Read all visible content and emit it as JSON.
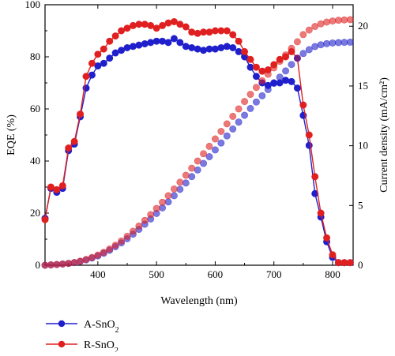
{
  "chart_data": {
    "type": "line",
    "xlabel": "Wavelength (nm)",
    "ylabel_left": "EQE (%)",
    "ylabel_right": "Current density (mA/cm²)",
    "xlim": [
      310,
      835
    ],
    "ylim_left": [
      0,
      100
    ],
    "ylim_right": [
      0,
      21.8
    ],
    "xticks": [
      400,
      500,
      600,
      700,
      800
    ],
    "yticks_left": [
      0,
      20,
      40,
      60,
      80,
      100
    ],
    "yticks_right": [
      0,
      5,
      10,
      15,
      20
    ],
    "grid": false,
    "legend_position": "bottom-left, below plot",
    "legend": [
      {
        "label": "A-SnO",
        "subscript": "2",
        "color": "#1f1fcc"
      },
      {
        "label": "R-SnO",
        "subscript": "2",
        "color": "#e02020"
      }
    ],
    "series": [
      {
        "name": "A-SnO2",
        "axis": "left",
        "color": "#1f1fcc",
        "x": [
          310,
          320,
          330,
          340,
          350,
          360,
          370,
          380,
          390,
          400,
          410,
          420,
          430,
          440,
          450,
          460,
          470,
          480,
          490,
          500,
          510,
          520,
          530,
          540,
          550,
          560,
          570,
          580,
          590,
          600,
          610,
          620,
          630,
          640,
          650,
          660,
          670,
          680,
          690,
          700,
          710,
          720,
          730,
          740,
          750,
          760,
          770,
          780,
          790,
          800,
          810,
          820,
          830
        ],
        "values": [
          18,
          29.5,
          28,
          29.5,
          44,
          46.5,
          57,
          68,
          73,
          76.5,
          77.5,
          79.5,
          81.5,
          82.5,
          83.5,
          84,
          84.5,
          85,
          85.5,
          86,
          86,
          85.5,
          87,
          85.5,
          84,
          83.5,
          83,
          82.5,
          83,
          83,
          83.5,
          84,
          83.5,
          82,
          80,
          76,
          72.5,
          70,
          69,
          70,
          70,
          71,
          70.5,
          68,
          57.5,
          46,
          27.5,
          18.5,
          9,
          3,
          1,
          1,
          1
        ]
      },
      {
        "name": "R-SnO2",
        "axis": "left",
        "color": "#e02020",
        "x": [
          310,
          320,
          330,
          340,
          350,
          360,
          370,
          380,
          390,
          400,
          410,
          420,
          430,
          440,
          450,
          460,
          470,
          480,
          490,
          500,
          510,
          520,
          530,
          540,
          550,
          560,
          570,
          580,
          590,
          600,
          610,
          620,
          630,
          640,
          650,
          660,
          670,
          680,
          690,
          700,
          710,
          720,
          730,
          740,
          750,
          760,
          770,
          780,
          790,
          800,
          810,
          820,
          830
        ],
        "values": [
          17.5,
          30,
          29,
          30.5,
          45,
          47.5,
          58,
          72.5,
          77.5,
          81,
          83,
          86,
          88,
          90,
          91,
          92,
          92.5,
          92.5,
          92,
          91,
          92,
          93,
          93.5,
          92.5,
          91.5,
          89.5,
          89,
          89.5,
          89.5,
          90,
          90,
          90,
          88.5,
          86,
          82,
          79,
          76,
          74.5,
          75,
          77,
          79,
          80,
          82,
          79.5,
          61.5,
          50,
          34,
          20,
          10.5,
          4,
          1,
          1,
          1
        ]
      },
      {
        "name": "A-SnO2 current density",
        "axis": "right",
        "color": "#1f1fcc",
        "x": [
          310,
          320,
          330,
          340,
          350,
          360,
          370,
          380,
          390,
          400,
          410,
          420,
          430,
          440,
          450,
          460,
          470,
          480,
          490,
          500,
          510,
          520,
          530,
          540,
          550,
          560,
          570,
          580,
          590,
          600,
          610,
          620,
          630,
          640,
          650,
          660,
          670,
          680,
          690,
          700,
          710,
          720,
          730,
          740,
          750,
          760,
          770,
          780,
          790,
          800,
          810,
          820,
          830
        ],
        "values": [
          0,
          0.03,
          0.06,
          0.1,
          0.15,
          0.22,
          0.32,
          0.45,
          0.6,
          0.78,
          1.0,
          1.25,
          1.55,
          1.87,
          2.22,
          2.6,
          3.0,
          3.43,
          3.87,
          4.33,
          4.8,
          5.3,
          5.82,
          6.35,
          6.88,
          7.42,
          7.97,
          8.52,
          9.08,
          9.65,
          10.23,
          10.82,
          11.4,
          11.98,
          12.55,
          13.12,
          13.66,
          14.18,
          14.7,
          15.22,
          15.74,
          16.26,
          16.8,
          17.32,
          17.72,
          18.04,
          18.3,
          18.45,
          18.54,
          18.6,
          18.63,
          18.65,
          18.67
        ]
      },
      {
        "name": "R-SnO2 current density",
        "axis": "right",
        "color": "#e02020",
        "x": [
          310,
          320,
          330,
          340,
          350,
          360,
          370,
          380,
          390,
          400,
          410,
          420,
          430,
          440,
          450,
          460,
          470,
          480,
          490,
          500,
          510,
          520,
          530,
          540,
          550,
          560,
          570,
          580,
          590,
          600,
          610,
          620,
          630,
          640,
          650,
          660,
          670,
          680,
          690,
          700,
          710,
          720,
          730,
          740,
          750,
          760,
          770,
          780,
          790,
          800,
          810,
          820,
          830
        ],
        "values": [
          0,
          0.03,
          0.06,
          0.1,
          0.15,
          0.23,
          0.34,
          0.48,
          0.65,
          0.85,
          1.08,
          1.36,
          1.68,
          2.03,
          2.42,
          2.84,
          3.28,
          3.75,
          4.24,
          4.75,
          5.27,
          5.82,
          6.38,
          6.95,
          7.53,
          8.12,
          8.72,
          9.33,
          9.95,
          10.57,
          11.2,
          11.83,
          12.46,
          13.08,
          13.7,
          14.3,
          14.88,
          15.44,
          15.98,
          16.52,
          17.06,
          17.6,
          18.15,
          18.7,
          19.3,
          19.68,
          19.98,
          20.2,
          20.35,
          20.44,
          20.5,
          20.53,
          20.55
        ]
      }
    ]
  }
}
